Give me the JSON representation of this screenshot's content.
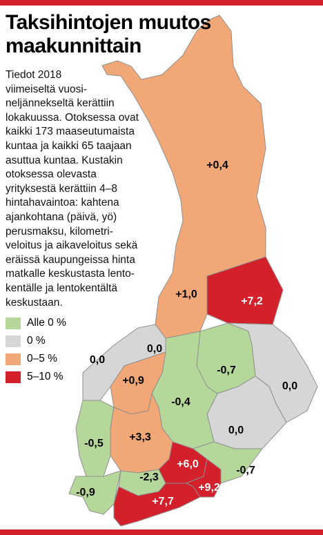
{
  "header": {
    "title": [
      "Taksihintojen muutos",
      "maakunnittain"
    ]
  },
  "description": [
    "Tiedot 2018",
    "viimeiseltä vuosi-",
    "neljännekseltä kerättiin",
    "lokakuussa. Otoksessa ovat",
    "kaikki 173 maaseutumaista",
    "kuntaa ja kaikki 65 taajaan",
    "asuttua kuntaa. Kustakin",
    "otoksessa olevasta",
    "yrityksestä kerättiin 4–8",
    "hintahavaintoa: kahtena",
    "ajankohtana (päivä, yö)",
    "perusmaksu, kilometri-",
    "veloitus ja aikaveloitus sekä",
    "eräissä kaupungeissa hinta",
    "matkalle keskustasta lento-",
    "kentälle ja lentokentältä",
    "keskustaan."
  ],
  "legend": [
    {
      "label": "Alle 0 %",
      "color": "#b5d89a"
    },
    {
      "label": "0 %",
      "color": "#d6d6d6"
    },
    {
      "label": "0–5 %",
      "color": "#f2a777"
    },
    {
      "label": "5–10 %",
      "color": "#d3202a"
    }
  ],
  "regions": [
    "+0,4",
    "+1,0",
    "+7,2",
    "0,0",
    "0,0",
    "-0,7",
    "0,0",
    "+0,9",
    "-0,4",
    "0,0",
    "-0,5",
    "+3,3",
    "+6,0",
    "-0,7",
    "-2,3",
    "+9,2",
    "-0,9",
    "+7,7"
  ]
}
